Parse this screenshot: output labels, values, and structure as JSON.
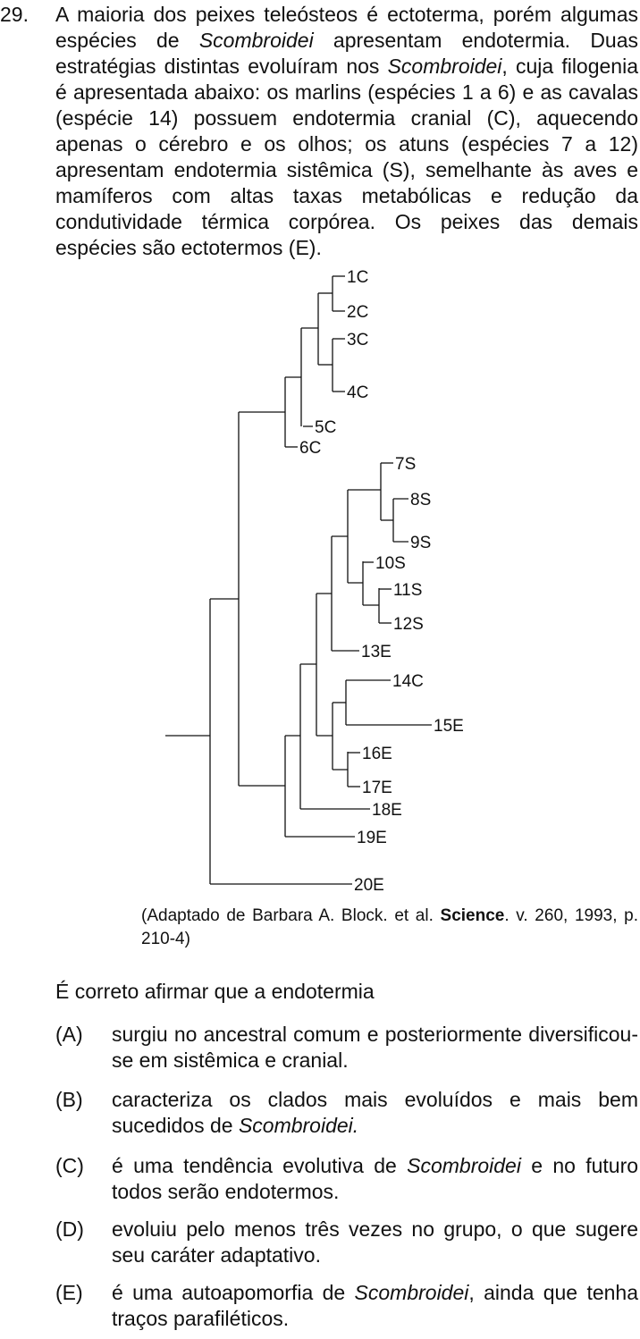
{
  "question": {
    "number": "29.",
    "stem": [
      {
        "t": "A maioria dos peixes teleósteos é ectoterma, porém algu­mas espécies de "
      },
      {
        "t": "Scombroidei",
        "i": true
      },
      {
        "t": " apresentam endotermia. Duas estratégias distintas evoluíram nos "
      },
      {
        "t": "Scombroidei",
        "i": true
      },
      {
        "t": ", cuja filogenia é apresentada abaixo: os marlins (espécies 1 a 6) e as cavalas (espécie 14) possuem endotermia cranial (C), aquecendo apenas o cérebro e os olhos; os atuns (espécies 7 a 12) apresentam endotermia sistêmica (S), semelhante às aves e mamíferos com altas taxas metabólicas e redução da condutividade térmica corpórea. Os peixes das demais espécies são ectotermos (E)."
      }
    ]
  },
  "tree": {
    "tips": [
      {
        "id": "t1",
        "label": "1C"
      },
      {
        "id": "t2",
        "label": "2C"
      },
      {
        "id": "t3",
        "label": "3C"
      },
      {
        "id": "t4",
        "label": "4C"
      },
      {
        "id": "t5",
        "label": "5C"
      },
      {
        "id": "t6",
        "label": "6C"
      },
      {
        "id": "t7",
        "label": "7S"
      },
      {
        "id": "t8",
        "label": "8S"
      },
      {
        "id": "t9",
        "label": "9S"
      },
      {
        "id": "t10",
        "label": "10S"
      },
      {
        "id": "t11",
        "label": "11S"
      },
      {
        "id": "t12",
        "label": "12S"
      },
      {
        "id": "t13",
        "label": "13E"
      },
      {
        "id": "t14",
        "label": "14C"
      },
      {
        "id": "t15",
        "label": "15E"
      },
      {
        "id": "t16",
        "label": "16E"
      },
      {
        "id": "t17",
        "label": "17E"
      },
      {
        "id": "t18",
        "label": "18E"
      },
      {
        "id": "t19",
        "label": "19E"
      },
      {
        "id": "t20",
        "label": "20E"
      }
    ],
    "topology": "(((((((1C,2C),(3C,4C)),5C),6C),(((((7S,(8S,9S)),(10S,(11S,12S))),13E),((14C,15E),(16E,17E))),18E),19E)),20E)"
  },
  "caption": {
    "before": "(Adaptado de Barbara A. Block. et al. ",
    "bold": "Science",
    "after": ". v. 260, 1993, p. 210-4)"
  },
  "prompt": "É correto afirmar que a endotermia",
  "options": [
    {
      "letter": "(A)",
      "parts": [
        {
          "t": "surgiu no ancestral comum e posteriormente diversificou-se em sistêmica e cranial."
        }
      ]
    },
    {
      "letter": "(B)",
      "parts": [
        {
          "t": "caracteriza os clados mais evoluídos e mais bem sucedidos de "
        },
        {
          "t": "Scombroidei.",
          "i": true
        }
      ]
    },
    {
      "letter": "(C)",
      "parts": [
        {
          "t": "é uma tendência evolutiva de "
        },
        {
          "t": "Scombroidei",
          "i": true
        },
        {
          "t": " e no futuro todos serão endotermos."
        }
      ]
    },
    {
      "letter": "(D)",
      "parts": [
        {
          "t": "evoluiu pelo menos três vezes no grupo, o que sugere seu caráter adaptativo."
        }
      ]
    },
    {
      "letter": "(E)",
      "parts": [
        {
          "t": "é uma autoapomorfia de "
        },
        {
          "t": "Scombroidei",
          "i": true
        },
        {
          "t": ", ainda que tenha traços parafiléticos."
        }
      ]
    }
  ]
}
